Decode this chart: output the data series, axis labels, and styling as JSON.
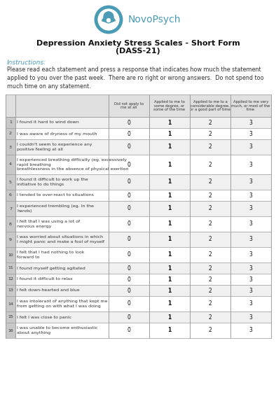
{
  "title_line1": "Depression Anxiety Stress Scales - Short Form",
  "title_line2": "(DASS-21)",
  "brand_name": "NovoPsych",
  "brand_color": "#4a9bb5",
  "instructions_label": "Instructions:",
  "instructions_text": "Please read each statement and press a response that indicates how much the statement\napplied to you over the past week.  There are ro right or wrong answers.  Do not spend too\nmuch time on any statement.",
  "col_headers": [
    "Did not apply to\nme at all",
    "Applied to me to\nsome degree, or\nsome of the time",
    "Applied to me to a\nconsiderable degree,\nor a good part of time",
    "Applied to me very\nmuch, or most of the\ntime"
  ],
  "col_values": [
    "0",
    "1",
    "2",
    "3"
  ],
  "items": [
    {
      "num": 1,
      "text": "I found it hard to wind down"
    },
    {
      "num": 2,
      "text": "I was aware of dryness of my mouth"
    },
    {
      "num": 3,
      "text": "I couldn't seem to experience any\npositive feeling at all"
    },
    {
      "num": 4,
      "text": "I experienced breathing difficulty (eg. excessively\nrapid breathing\nbreathlessness in the absence of physical exertion"
    },
    {
      "num": 5,
      "text": "I found it difficult to work up the\ninitiative to do things"
    },
    {
      "num": 6,
      "text": "I tended to over-react to situations"
    },
    {
      "num": 7,
      "text": "I experienced trembling (eg. In the\nhands)"
    },
    {
      "num": 8,
      "text": "I felt that I was using a lot of\nnervous energy"
    },
    {
      "num": 9,
      "text": "I was worried about situations in which\nI might panic and make a fool of myself"
    },
    {
      "num": 10,
      "text": "I felt that I had nothing to look\nforward to"
    },
    {
      "num": 11,
      "text": "I found myself getting agitated"
    },
    {
      "num": 12,
      "text": "I found it difficult to relax"
    },
    {
      "num": 13,
      "text": "I felt down-hearted and blue"
    },
    {
      "num": 14,
      "text": "I was intolerant of anything that kept me\nfrom getting on with what I was doing"
    },
    {
      "num": 15,
      "text": "I felt I was close to panic"
    },
    {
      "num": 16,
      "text": "I was unable to become enthusiastic\nabout anything"
    }
  ],
  "header_bg": "#e0e0e0",
  "row_bg_alt": "#f0f0f0",
  "row_bg_norm": "#ffffff",
  "table_border_color": "#999999",
  "num_col_color": "#c8c8c8",
  "title_color": "#111111",
  "instructions_color": "#4a9bb5",
  "text_color": "#333333",
  "value_color": "#111111",
  "bg_color": "#ffffff",
  "logo_color": "#4a9bb5"
}
